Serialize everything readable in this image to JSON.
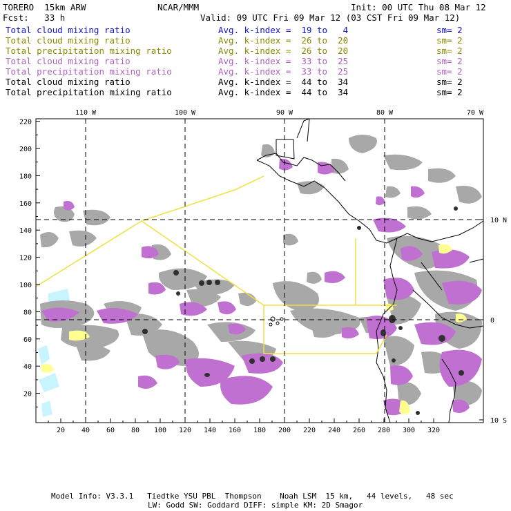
{
  "header": {
    "model": "TORERO  15km ARW",
    "org": "NCAR/MMM",
    "init": "Init: 00 UTC Thu 08 Mar 12",
    "fcst": "Fcst:   33 h",
    "valid": "Valid: 09 UTC Fri 09 Mar 12 (03 CST Fri 09 Mar 12)"
  },
  "legend": [
    {
      "field": "Total cloud mixing ratio",
      "index": "Avg. k-index =  19 to   4",
      "sm": "sm= 2",
      "color": "#1010d0"
    },
    {
      "field": "Total cloud mixing ratio",
      "index": "Avg. k-index =  26 to  20",
      "sm": "sm= 2",
      "color": "#8a8a00"
    },
    {
      "field": "Total precipitation mixing ratio",
      "index": "Avg. k-index =  26 to  20",
      "sm": "sm= 2",
      "color": "#8a8a00"
    },
    {
      "field": "Total cloud mixing ratio",
      "index": "Avg. k-index =  33 to  25",
      "sm": "sm= 2",
      "color": "#b060c0"
    },
    {
      "field": "Total precipitation mixing ratio",
      "index": "Avg. k-index =  33 to  25",
      "sm": "sm= 2",
      "color": "#b060c0"
    },
    {
      "field": "Total cloud mixing ratio",
      "index": "Avg. k-index =  44 to  34",
      "sm": "sm= 2",
      "color": "#000000"
    },
    {
      "field": "Total precipitation mixing ratio",
      "index": "Avg. k-index =  44 to  34",
      "sm": "sm= 2",
      "color": "#000000"
    }
  ],
  "axes": {
    "lon_labels": [
      "110 W",
      "100 W",
      "90 W",
      "80 W",
      "70 W"
    ],
    "lat_labels": [
      "10 N",
      "0",
      "10 S"
    ],
    "x_ticks": [
      "20",
      "40",
      "60",
      "80",
      "100",
      "120",
      "140",
      "160",
      "180",
      "200",
      "220",
      "240",
      "260",
      "280",
      "300",
      "320"
    ],
    "y_ticks": [
      "220",
      "200",
      "180",
      "160",
      "140",
      "120",
      "100",
      "80",
      "60",
      "40",
      "20"
    ]
  },
  "footer": {
    "line1": "Model Info: V3.3.1   Tiedtke YSU PBL  Thompson    Noah LSM  15 km,   44 levels,   48 sec",
    "line2": "LW: Godd SW: Goddard DIFF: simple KM: 2D Smagor"
  },
  "colors": {
    "cloud_gray": "#a8a8a8",
    "precip_purple": "#c070d0",
    "yellow_light": "#ffff90",
    "cyan": "#c8f4ff",
    "yellow_line": "#f0e040"
  }
}
